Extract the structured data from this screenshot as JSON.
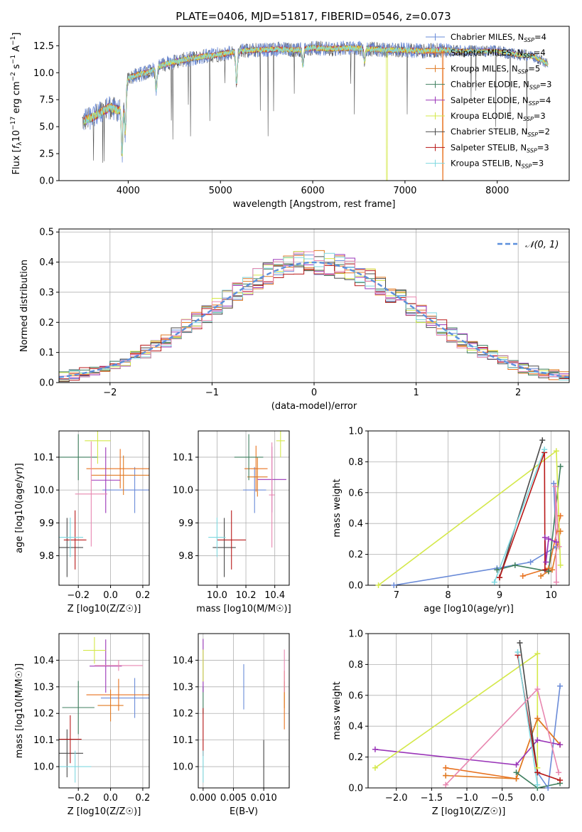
{
  "title": "PLATE=0406, MJD=51817, FIBERID=0546, z=0.073",
  "models": [
    {
      "name": "Chabrier MILES, N_SSP=4",
      "label_main": "Chabrier MILES, N",
      "label_sub": "SSP",
      "label_tail": "=4",
      "color": "#6a8bd8"
    },
    {
      "name": "Salpeter MILES, N_SSP=4",
      "label_main": "Salpeter MILES, N",
      "label_sub": "SSP",
      "label_tail": "=4",
      "color": "#e8721f"
    },
    {
      "name": "Kroupa MILES, N_SSP=5",
      "label_main": "Kroupa MILES, N",
      "label_sub": "SSP",
      "label_tail": "=5",
      "color": "#e07a22"
    },
    {
      "name": "Chabrier ELODIE, N_SSP=3",
      "label_main": "Chabrier ELODIE, N",
      "label_sub": "SSP",
      "label_tail": "=3",
      "color": "#3f7f5f"
    },
    {
      "name": "Salpeter ELODIE, N_SSP=4",
      "label_main": "Salpeter ELODIE, N",
      "label_sub": "SSP",
      "label_tail": "=4",
      "color": "#9a35b8"
    },
    {
      "name": "Kroupa ELODIE, N_SSP=3",
      "label_main": "Kroupa ELODIE, N",
      "label_sub": "SSP",
      "label_tail": "=3",
      "color": "#d4e84a"
    },
    {
      "name": "Chabrier STELIB, N_SSP=2",
      "label_main": "Chabrier STELIB, N",
      "label_sub": "SSP",
      "label_tail": "=2",
      "color": "#4a4a4a"
    },
    {
      "name": "Salpeter STELIB, N_SSP=3",
      "label_main": "Salpeter STELIB, N",
      "label_sub": "SSP",
      "label_tail": "=3",
      "color": "#b81818"
    },
    {
      "name": "Kroupa STELIB, N_SSP=3",
      "label_main": "Kroupa STELIB, N",
      "label_sub": "SSP",
      "label_tail": "=3",
      "color": "#7fd8e0"
    }
  ],
  "extra_color_pink": "#e887b0",
  "chart_data": [
    {
      "id": "spectrum",
      "type": "line",
      "xlabel": "wavelength [Angstrom, rest frame]",
      "ylabel": "Flux [f_λ 10^-17 erg cm^-2 s^-1 A^-1]",
      "xlim": [
        3250,
        8780
      ],
      "ylim": [
        0,
        14.3
      ],
      "xticks": [
        4000,
        5000,
        6000,
        7000,
        8000
      ],
      "yticks": [
        0.0,
        2.5,
        5.0,
        7.5,
        10.0,
        12.5
      ],
      "continuum": {
        "x": [
          3500,
          3600,
          3700,
          3800,
          3900,
          3950,
          4000,
          4100,
          4200,
          4300,
          4400,
          4600,
          4800,
          5000,
          5200,
          5400,
          5600,
          5800,
          6000,
          6200,
          6400,
          6600,
          6800,
          7000,
          7200,
          7400,
          7600,
          7800,
          8000,
          8200,
          8400,
          8550
        ],
        "y": [
          5.5,
          5.8,
          6.3,
          6.8,
          6.5,
          7.2,
          9.5,
          9.8,
          10.0,
          10.4,
          10.8,
          11.2,
          11.5,
          11.7,
          12.0,
          12.1,
          12.2,
          12.1,
          12.3,
          12.2,
          12.3,
          12.2,
          12.1,
          12.1,
          12.0,
          12.1,
          12.0,
          12.0,
          12.0,
          11.7,
          11.5,
          10.8
        ]
      },
      "absorption_features": [
        {
          "x": 3934,
          "depth": 4.5
        },
        {
          "x": 3969,
          "depth": 3.5
        },
        {
          "x": 4304,
          "depth": 2.0
        },
        {
          "x": 5175,
          "depth": 3.0
        },
        {
          "x": 5894,
          "depth": 1.5
        },
        {
          "x": 6563,
          "depth": 1.2
        }
      ],
      "edge_drops": [
        {
          "series": "Salpeter MILES, N_SSP=4",
          "x": 3505
        },
        {
          "series": "Kroupa ELODIE, N_SSP=3",
          "x": 6805
        },
        {
          "series": "Salpeter MILES, N_SSP=4",
          "x": 7410
        }
      ],
      "legend": "top-right"
    },
    {
      "id": "residuals",
      "type": "bar",
      "xlabel": "(data-model)/error",
      "ylabel": "Normed distribution",
      "xlim": [
        -2.5,
        2.5
      ],
      "ylim": [
        0,
        0.51
      ],
      "xticks": [
        -2,
        -1,
        0,
        1,
        2
      ],
      "yticks": [
        0.0,
        0.1,
        0.2,
        0.3,
        0.4,
        0.5
      ],
      "bin_width": 0.1,
      "reference": {
        "name": "N(0,1)",
        "mean": 0,
        "sigma": 1
      },
      "histogram": {
        "bin_edges_start": -2.5,
        "gaussian_mean": 0,
        "gaussian_sigma": 1,
        "noise": 0.04
      },
      "legend": "top-right"
    },
    {
      "id": "age-vs-Z",
      "type": "scatter",
      "xlabel": "Z [log10(Z/Z☉)]",
      "ylabel": "age  [log10(age/yr)]",
      "xlim": [
        -0.32,
        0.24
      ],
      "ylim": [
        9.71,
        10.18
      ],
      "xticks": [
        -0.2,
        0.0,
        0.2
      ],
      "yticks": [
        9.8,
        9.9,
        10.0,
        10.1
      ],
      "points": [
        {
          "series": "Chabrier MILES, N_SSP=4",
          "x": 0.15,
          "y": 10.0,
          "xerr": 0.2,
          "yerr": 0.07
        },
        {
          "series": "Salpeter MILES, N_SSP=4",
          "x": 0.06,
          "y": 10.065,
          "xerr": 0.21,
          "yerr": 0.06
        },
        {
          "series": "Kroupa MILES, N_SSP=5",
          "x": 0.08,
          "y": 10.045,
          "xerr": 0.2,
          "yerr": 0.06
        },
        {
          "series": "Chabrier ELODIE, N_SSP=3",
          "x": -0.2,
          "y": 10.1,
          "xerr": 0.12,
          "yerr": 0.07
        },
        {
          "series": "Salpeter ELODIE, N_SSP=4",
          "x": -0.03,
          "y": 10.03,
          "xerr": 0.09,
          "yerr": 0.1
        },
        {
          "series": "Kroupa ELODIE, N_SSP=3",
          "x": -0.08,
          "y": 10.15,
          "xerr": 0.08,
          "yerr": 0.07
        },
        {
          "series": "Chabrier STELIB, N_SSP=2",
          "x": -0.27,
          "y": 9.825,
          "xerr": 0.1,
          "yerr": 0.09
        },
        {
          "series": "Salpeter STELIB, N_SSP=3",
          "x": -0.22,
          "y": 9.848,
          "xerr": 0.07,
          "yerr": 0.09
        },
        {
          "series": "Kroupa STELIB, N_SSP=3",
          "x": -0.25,
          "y": 9.856,
          "xerr": 0.08,
          "yerr": 0.06
        },
        {
          "series": "pink",
          "x": -0.12,
          "y": 9.988,
          "xerr": 0.1,
          "yerr": 0.16
        }
      ]
    },
    {
      "id": "age-vs-mass",
      "type": "scatter",
      "xlabel": "mass [log10(M/M☉)]",
      "ylabel": "",
      "xlim": [
        9.87,
        10.5
      ],
      "ylim": [
        9.71,
        10.18
      ],
      "xticks": [
        10.0,
        10.2,
        10.4
      ],
      "yticks": [
        9.8,
        9.9,
        10.0,
        10.1
      ],
      "points": [
        {
          "series": "Chabrier MILES, N_SSP=4",
          "x": 10.26,
          "y": 10.0,
          "xerr": 0.08,
          "yerr": 0.07
        },
        {
          "series": "Salpeter MILES, N_SSP=4",
          "x": 10.27,
          "y": 10.065,
          "xerr": 0.08,
          "yerr": 0.07
        },
        {
          "series": "Kroupa MILES, N_SSP=5",
          "x": 10.28,
          "y": 10.04,
          "xerr": 0.07,
          "yerr": 0.06
        },
        {
          "series": "Chabrier ELODIE, N_SSP=3",
          "x": 10.22,
          "y": 10.1,
          "xerr": 0.1,
          "yerr": 0.07
        },
        {
          "series": "Salpeter ELODIE, N_SSP=4",
          "x": 10.38,
          "y": 10.032,
          "xerr": 0.1,
          "yerr": 0.1
        },
        {
          "series": "Kroupa ELODIE, N_SSP=3",
          "x": 10.44,
          "y": 10.15,
          "xerr": 0.03,
          "yerr": 0.05
        },
        {
          "series": "Chabrier STELIB, N_SSP=2",
          "x": 10.05,
          "y": 9.825,
          "xerr": 0.08,
          "yerr": 0.09
        },
        {
          "series": "Salpeter STELIB, N_SSP=3",
          "x": 10.1,
          "y": 9.848,
          "xerr": 0.1,
          "yerr": 0.09
        },
        {
          "series": "Kroupa STELIB, N_SSP=3",
          "x": 10.0,
          "y": 9.856,
          "xerr": 0.06,
          "yerr": 0.06
        },
        {
          "series": "pink",
          "x": 10.38,
          "y": 9.985,
          "xerr": 0.02,
          "yerr": 0.16
        }
      ]
    },
    {
      "id": "mass-weight-vs-age",
      "type": "line",
      "xlabel": "age  [log10(age/yr)]",
      "ylabel": "mass weight",
      "xlim": [
        6.45,
        10.35
      ],
      "ylim": [
        0,
        1.0
      ],
      "xticks": [
        7,
        8,
        9,
        10
      ],
      "yticks": [
        0.0,
        0.2,
        0.4,
        0.6,
        0.8,
        1.0
      ],
      "series": [
        {
          "name": "Chabrier MILES, N_SSP=4",
          "x": [
            6.95,
            8.95,
            9.6,
            10.1,
            10.05
          ],
          "y": [
            0.0,
            0.11,
            0.15,
            0.25,
            0.66
          ]
        },
        {
          "name": "Salpeter MILES, N_SSP=4",
          "x": [
            9.45,
            9.95,
            10.18
          ],
          "y": [
            0.06,
            0.11,
            0.45
          ]
        },
        {
          "name": "Kroupa MILES, N_SSP=5",
          "x": [
            9.8,
            9.95,
            10.02,
            10.18
          ],
          "y": [
            0.06,
            0.09,
            0.1,
            0.35
          ]
        },
        {
          "name": "Chabrier ELODIE, N_SSP=3",
          "x": [
            8.95,
            9.3,
            9.95,
            10.18
          ],
          "y": [
            0.1,
            0.13,
            0.09,
            0.77
          ]
        },
        {
          "name": "Salpeter ELODIE, N_SSP=4",
          "x": [
            9.88,
            9.9,
            9.95,
            10.1
          ],
          "y": [
            0.31,
            0.15,
            0.3,
            0.28
          ]
        },
        {
          "name": "Kroupa ELODIE, N_SSP=3",
          "x": [
            6.65,
            10.1,
            10.18
          ],
          "y": [
            0.0,
            0.87,
            0.13
          ]
        },
        {
          "name": "Chabrier STELIB, N_SSP=2",
          "x": [
            9.0,
            9.83
          ],
          "y": [
            0.05,
            0.94
          ]
        },
        {
          "name": "Salpeter STELIB, N_SSP=3",
          "x": [
            9.0,
            9.87,
            9.88
          ],
          "y": [
            0.05,
            0.86,
            0.1
          ]
        },
        {
          "name": "Kroupa STELIB, N_SSP=3",
          "x": [
            8.9,
            9.87
          ],
          "y": [
            0.02,
            0.88
          ]
        },
        {
          "name": "pink",
          "x": [
            10.1,
            10.08,
            10.15
          ],
          "y": [
            0.02,
            0.64,
            0.25
          ]
        }
      ]
    },
    {
      "id": "mass-vs-Z",
      "type": "scatter",
      "xlabel": "Z [log10(Z/Z☉)]",
      "ylabel": "mass [log10(M/M☉)]",
      "xlim": [
        -0.32,
        0.24
      ],
      "ylim": [
        9.92,
        10.5
      ],
      "xticks": [
        -0.2,
        0.0,
        0.2
      ],
      "yticks": [
        10.0,
        10.1,
        10.2,
        10.3,
        10.4
      ],
      "points": [
        {
          "series": "Chabrier MILES, N_SSP=4",
          "x": 0.15,
          "y": 10.258,
          "xerr": 0.21,
          "yerr": 0.075
        },
        {
          "series": "Salpeter MILES, N_SSP=4",
          "x": 0.05,
          "y": 10.27,
          "xerr": 0.2,
          "yerr": 0.06
        },
        {
          "series": "Kroupa MILES, N_SSP=5",
          "x": 0.0,
          "y": 10.23,
          "xerr": 0.08,
          "yerr": 0.06
        },
        {
          "series": "Chabrier ELODIE, N_SSP=3",
          "x": -0.2,
          "y": 10.222,
          "xerr": 0.1,
          "yerr": 0.1
        },
        {
          "series": "Salpeter ELODIE, N_SSP=4",
          "x": -0.03,
          "y": 10.378,
          "xerr": 0.1,
          "yerr": 0.1
        },
        {
          "series": "Kroupa ELODIE, N_SSP=3",
          "x": -0.1,
          "y": 10.437,
          "xerr": 0.07,
          "yerr": 0.05
        },
        {
          "series": "Chabrier STELIB, N_SSP=2",
          "x": -0.27,
          "y": 10.05,
          "xerr": 0.1,
          "yerr": 0.09
        },
        {
          "series": "Salpeter STELIB, N_SSP=3",
          "x": -0.25,
          "y": 10.103,
          "xerr": 0.07,
          "yerr": 0.09
        },
        {
          "series": "Kroupa STELIB, N_SSP=3",
          "x": -0.22,
          "y": 10.0,
          "xerr": 0.1,
          "yerr": 0.06
        },
        {
          "series": "pink",
          "x": 0.05,
          "y": 10.38,
          "xerr": 0.15,
          "yerr": 0.02
        }
      ]
    },
    {
      "id": "mass-vs-ebv",
      "type": "scatter",
      "xlabel": "E(B-V)",
      "ylabel": "",
      "xlim": [
        -0.0008,
        0.0142
      ],
      "ylim": [
        9.92,
        10.5
      ],
      "xticks": [
        0.0,
        0.005,
        0.01
      ],
      "xtick_labels": [
        "0.000",
        "0.005",
        "0.010"
      ],
      "yticks": [
        10.0,
        10.1,
        10.2,
        10.3,
        10.4
      ],
      "points": [
        {
          "series": "Chabrier MILES, N_SSP=4",
          "x": 0.0067,
          "y": 10.3,
          "xerr": 0,
          "yerr": 0.085
        },
        {
          "series": "Salpeter MILES, N_SSP=4",
          "x": 0.0134,
          "y": 10.25,
          "xerr": 0,
          "yerr": 0.11
        },
        {
          "series": "Kroupa MILES, N_SSP=5",
          "x": 0.0134,
          "y": 10.27,
          "xerr": 0,
          "yerr": 0.05
        },
        {
          "series": "Chabrier ELODIE, N_SSP=3",
          "x": 0.0,
          "y": 10.25,
          "xerr": 0,
          "yerr": 0.05
        },
        {
          "series": "Salpeter ELODIE, N_SSP=4",
          "x": 0.0,
          "y": 10.38,
          "xerr": 0,
          "yerr": 0.1
        },
        {
          "series": "Kroupa ELODIE, N_SSP=3",
          "x": 0.0,
          "y": 10.38,
          "xerr": 0,
          "yerr": 0.06
        },
        {
          "series": "Chabrier STELIB, N_SSP=2",
          "x": 0.01,
          "y": 10.0,
          "xerr": 0,
          "yerr": 0.1
        },
        {
          "series": "Salpeter STELIB, N_SSP=3",
          "x": 0.0,
          "y": 10.13,
          "xerr": 0,
          "yerr": 0.09
        },
        {
          "series": "Kroupa STELIB, N_SSP=3",
          "x": 0.0,
          "y": 10.0,
          "xerr": 0,
          "yerr": 0.06
        },
        {
          "series": "pink",
          "x": 0.0134,
          "y": 10.36,
          "xerr": 0,
          "yerr": 0.08
        }
      ]
    },
    {
      "id": "mass-weight-vs-Z",
      "type": "line",
      "xlabel": "Z [log10(Z/Z☉)]",
      "ylabel": "mass weight",
      "xlim": [
        -2.4,
        0.45
      ],
      "ylim": [
        0,
        1.0
      ],
      "xticks": [
        -2.0,
        -1.5,
        -1.0,
        -0.5,
        0.0
      ],
      "yticks": [
        0.0,
        0.2,
        0.4,
        0.6,
        0.8,
        1.0
      ],
      "series": [
        {
          "name": "Chabrier MILES, N_SSP=4",
          "x": [
            0.0,
            0.15,
            0.32
          ],
          "y": [
            0.1,
            0.0,
            0.66
          ]
        },
        {
          "name": "Salpeter MILES, N_SSP=4",
          "x": [
            -1.3,
            -0.3,
            0.0,
            0.32
          ],
          "y": [
            0.13,
            0.06,
            0.45,
            0.28
          ]
        },
        {
          "name": "Kroupa MILES, N_SSP=5",
          "x": [
            -1.3,
            -1.3,
            -0.3,
            0.0,
            0.32
          ],
          "y": [
            0.08,
            0.08,
            0.06,
            0.45,
            0.28
          ]
        },
        {
          "name": "Chabrier ELODIE, N_SSP=3",
          "x": [
            -0.3,
            0.0,
            0.32
          ],
          "y": [
            0.1,
            0.0,
            0.03
          ]
        },
        {
          "name": "Salpeter ELODIE, N_SSP=4",
          "x": [
            -2.3,
            -0.3,
            0.0,
            0.32
          ],
          "y": [
            0.25,
            0.15,
            0.31,
            0.28
          ]
        },
        {
          "name": "Kroupa ELODIE, N_SSP=3",
          "x": [
            -2.3,
            0.0,
            0.0
          ],
          "y": [
            0.13,
            0.87,
            0.13
          ]
        },
        {
          "name": "Chabrier STELIB, N_SSP=2",
          "x": [
            -0.25,
            0.0
          ],
          "y": [
            0.94,
            0.1
          ]
        },
        {
          "name": "Salpeter STELIB, N_SSP=3",
          "x": [
            -0.28,
            0.0,
            0.32
          ],
          "y": [
            0.86,
            0.1,
            0.05
          ]
        },
        {
          "name": "Kroupa STELIB, N_SSP=3",
          "x": [
            -0.28,
            0.0
          ],
          "y": [
            0.88,
            0.02
          ]
        },
        {
          "name": "pink",
          "x": [
            -1.3,
            0.0,
            0.3
          ],
          "y": [
            0.02,
            0.64,
            0.1
          ]
        }
      ]
    }
  ]
}
